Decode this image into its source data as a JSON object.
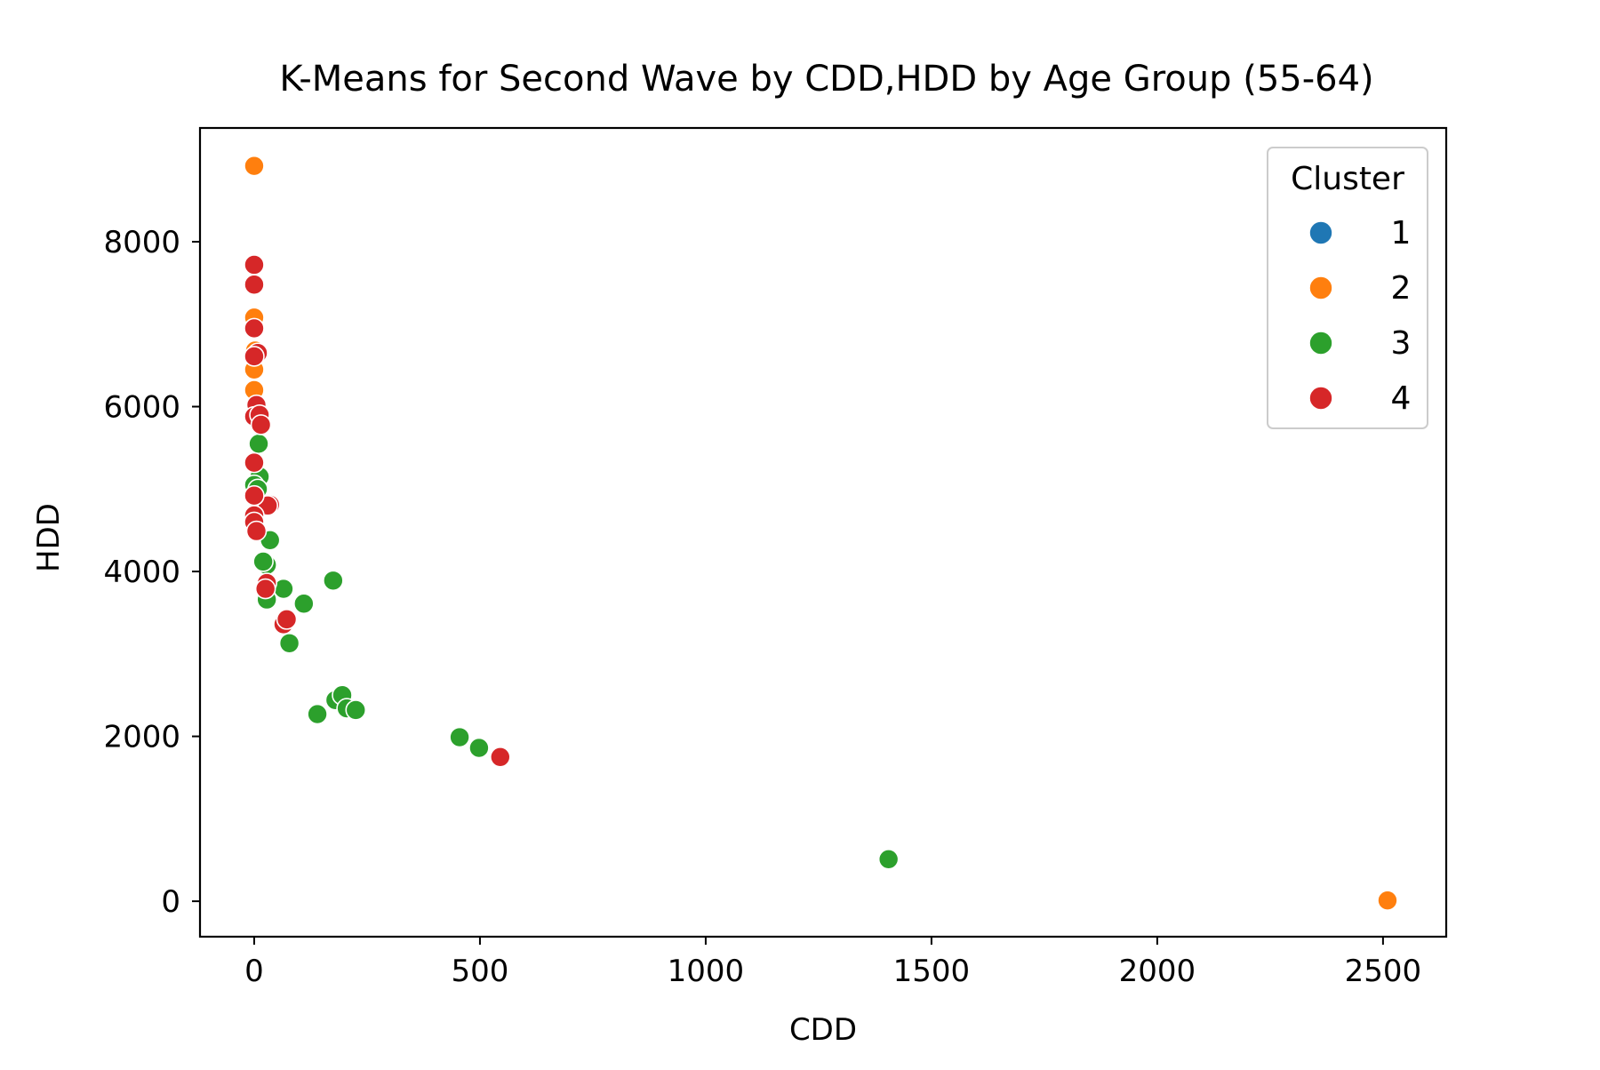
{
  "chart_data": {
    "type": "scatter",
    "title": "K-Means for Second Wave by CDD,HDD by Age Group (55-64)",
    "xlabel": "CDD",
    "ylabel": "HDD",
    "xlim": [
      -120,
      2640
    ],
    "ylim": [
      -430,
      9380
    ],
    "xticks": [
      0,
      500,
      1000,
      1500,
      2000,
      2500
    ],
    "yticks": [
      0,
      2000,
      4000,
      6000,
      8000
    ],
    "grid": false,
    "legend": {
      "title": "Cluster",
      "placement": "top-right",
      "entries": [
        {
          "label": "1",
          "color": "#1f77b4"
        },
        {
          "label": "2",
          "color": "#ff7f0e"
        },
        {
          "label": "3",
          "color": "#2ca02c"
        },
        {
          "label": "4",
          "color": "#d62728"
        }
      ]
    },
    "series": [
      {
        "name": "1",
        "color": "#1f77b4",
        "points": []
      },
      {
        "name": "2",
        "color": "#ff7f0e",
        "points": [
          [
            0,
            8920
          ],
          [
            0,
            7080
          ],
          [
            2,
            6680
          ],
          [
            0,
            6450
          ],
          [
            0,
            6200
          ],
          [
            2510,
            10
          ]
        ]
      },
      {
        "name": "3",
        "color": "#2ca02c",
        "points": [
          [
            10,
            5550
          ],
          [
            12,
            5150
          ],
          [
            0,
            5050
          ],
          [
            8,
            5000
          ],
          [
            35,
            4380
          ],
          [
            28,
            4080
          ],
          [
            20,
            4120
          ],
          [
            28,
            3660
          ],
          [
            65,
            3790
          ],
          [
            110,
            3610
          ],
          [
            175,
            3890
          ],
          [
            78,
            3130
          ],
          [
            180,
            2440
          ],
          [
            195,
            2500
          ],
          [
            205,
            2340
          ],
          [
            225,
            2320
          ],
          [
            140,
            2270
          ],
          [
            455,
            1990
          ],
          [
            498,
            1860
          ],
          [
            1405,
            510
          ]
        ]
      },
      {
        "name": "4",
        "color": "#d62728",
        "points": [
          [
            0,
            7720
          ],
          [
            0,
            7480
          ],
          [
            0,
            6950
          ],
          [
            8,
            6650
          ],
          [
            0,
            6610
          ],
          [
            5,
            6020
          ],
          [
            0,
            5880
          ],
          [
            12,
            5900
          ],
          [
            15,
            5780
          ],
          [
            0,
            5320
          ],
          [
            35,
            4810
          ],
          [
            30,
            4800
          ],
          [
            0,
            4920
          ],
          [
            0,
            4680
          ],
          [
            0,
            4600
          ],
          [
            5,
            4490
          ],
          [
            28,
            3860
          ],
          [
            25,
            3790
          ],
          [
            65,
            3360
          ],
          [
            72,
            3420
          ],
          [
            545,
            1750
          ]
        ]
      }
    ]
  }
}
